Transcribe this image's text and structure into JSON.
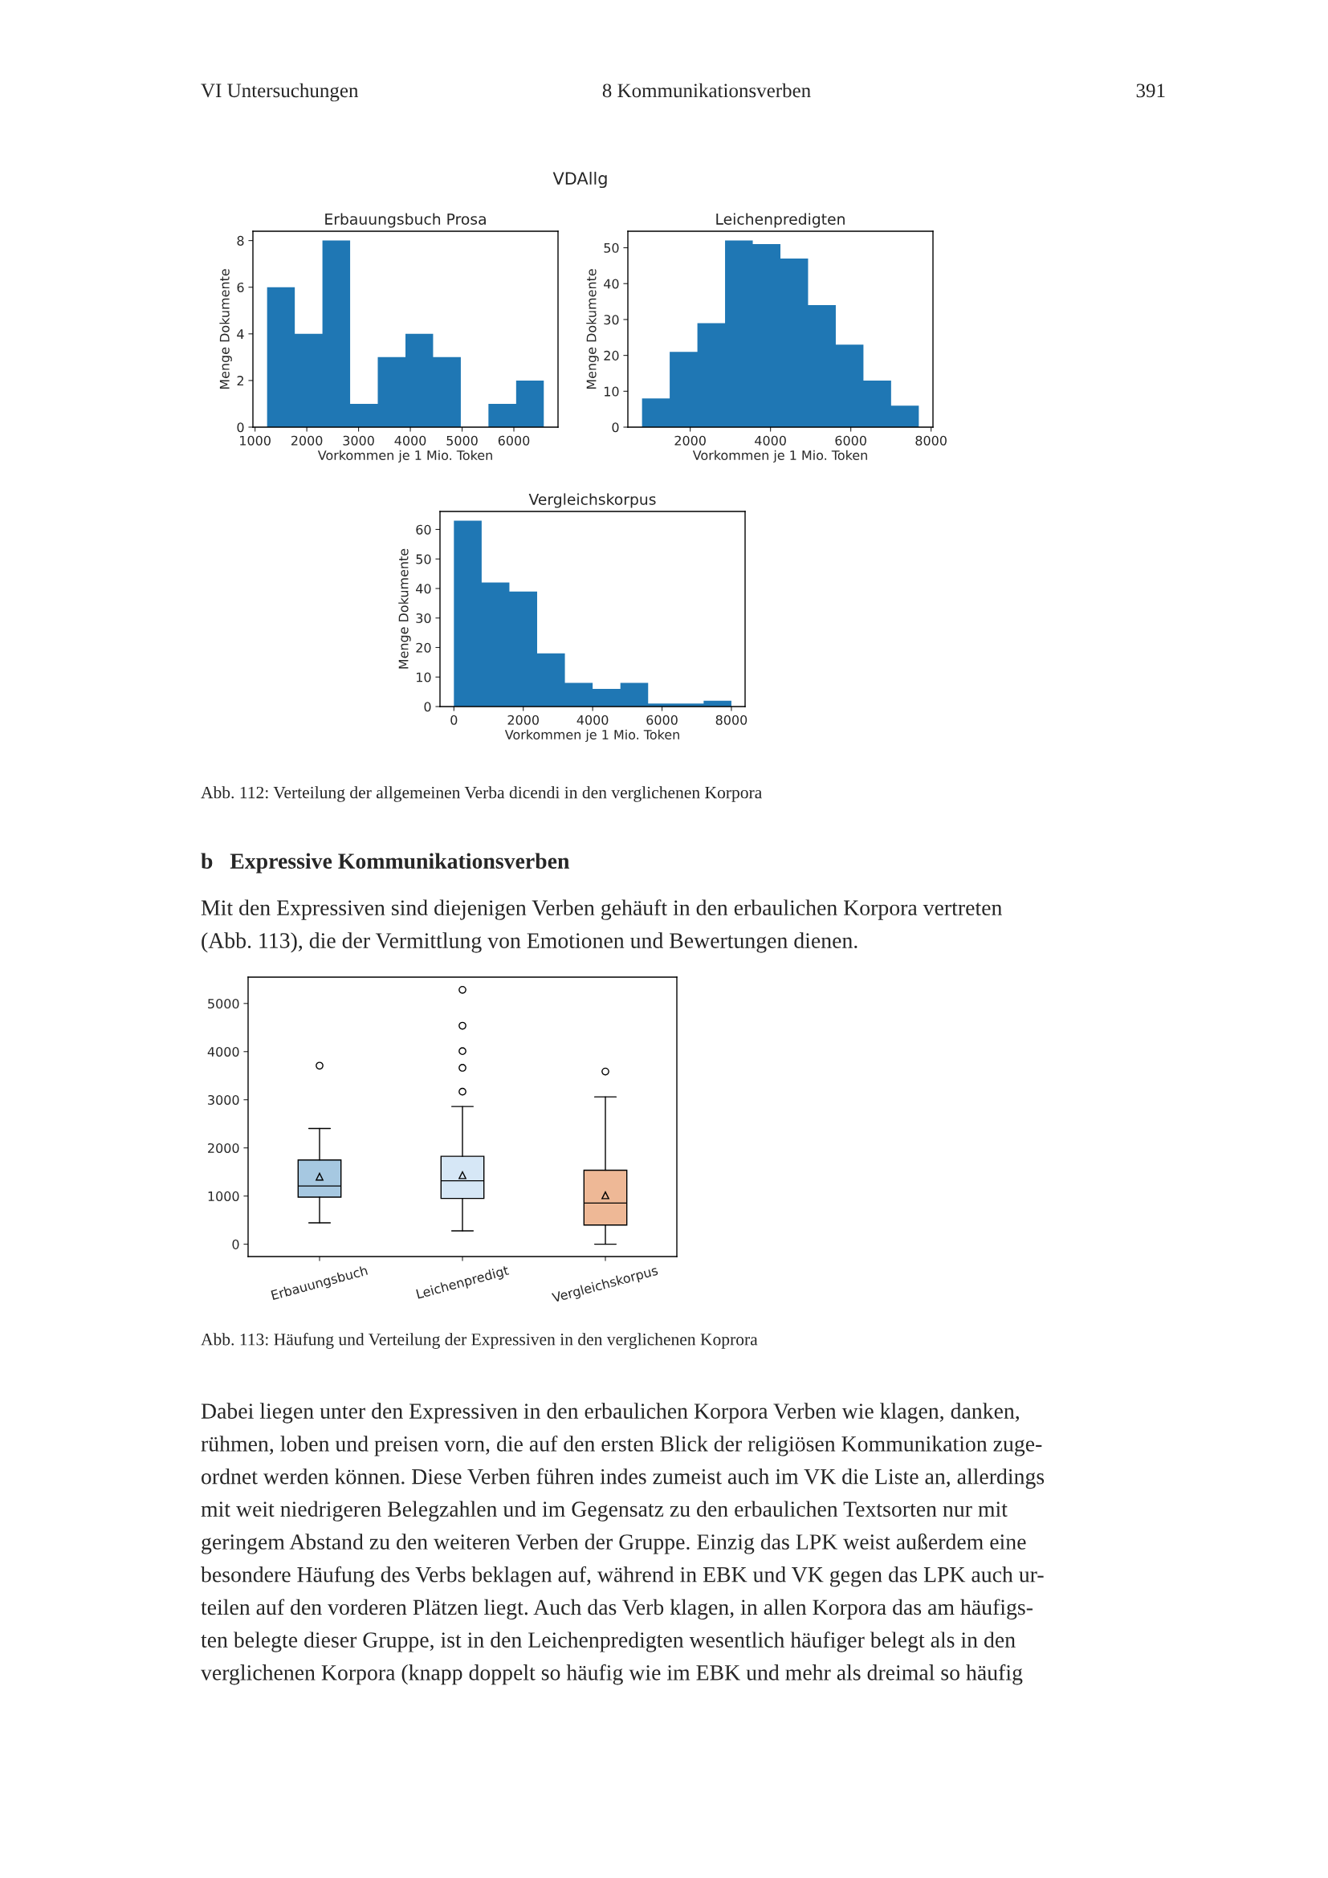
{
  "chart_data": [
    {
      "type": "histogram",
      "title": "Erbauungsbuch Prosa",
      "xlabel": "Vorkommen je 1 Mio. Token",
      "ylabel": "Menge Dokumente",
      "color": "#1f77b4",
      "bins": [
        1233,
        1768,
        2302,
        2837,
        3371,
        3906,
        4440,
        4975,
        5509,
        6044,
        6578
      ],
      "values": [
        6,
        4,
        8,
        1,
        3,
        4,
        3,
        0,
        1,
        2
      ],
      "xlim": [
        959,
        6853
      ],
      "ylim": [
        0,
        8.4
      ],
      "xticks": [
        1000,
        2000,
        3000,
        4000,
        5000,
        6000
      ],
      "yticks": [
        0,
        2,
        4,
        6,
        8
      ],
      "grid": false,
      "annotations": [
        "VI Untersuchungen",
        "8 Kommunikationsverben",
        "391",
        "VDAllg"
      ]
    },
    {
      "type": "histogram",
      "title": "Leichenpredigten",
      "xlabel": "Vorkommen je 1 Mio. Token",
      "ylabel": "Menge Dokumente",
      "color": "#1f77b4",
      "bins": [
        800,
        1489,
        2179,
        2868,
        3558,
        4247,
        4936,
        5626,
        6315,
        7004,
        7694
      ],
      "values": [
        8,
        21,
        29,
        52,
        51,
        47,
        34,
        23,
        13,
        6
      ],
      "xlim": [
        447,
        8047
      ],
      "ylim": [
        0,
        54.6
      ],
      "xticks": [
        2000,
        4000,
        6000,
        8000
      ],
      "yticks": [
        0,
        10,
        20,
        30,
        40,
        50
      ],
      "grid": false
    },
    {
      "type": "histogram",
      "title": "Vergleichskorpus",
      "xlabel": "Vorkommen je 1 Mio. Token",
      "ylabel": "Menge Dokumente",
      "color": "#1f77b4",
      "bins": [
        0,
        800,
        1600,
        2400,
        3200,
        4000,
        4800,
        5600,
        6400,
        7200,
        8000
      ],
      "values": [
        63,
        42,
        39,
        18,
        8,
        6,
        8,
        1,
        1,
        2
      ],
      "xlim": [
        -401,
        8395
      ],
      "ylim": [
        0,
        66.1
      ],
      "xticks": [
        0,
        2000,
        4000,
        6000,
        8000
      ],
      "yticks": [
        0,
        10,
        20,
        30,
        40,
        50,
        60
      ],
      "grid": false,
      "annotations": [
        "Abb. 112: Verteilung der allgemeinen Verba dicendi in den verglichenen Korpora",
        "b   Expressive Kommunikationsverben",
        "Mit den Expressiven sind diejenigen Verben gehäuft in den erbaulichen Korpora vertreten",
        "(Abb. 113), die der Vermittlung von Emotionen und Bewertungen dienen."
      ]
    },
    {
      "type": "box",
      "categories": [
        "Erbauungsbuch",
        "Leichenpredigt",
        "Vergleichskorpus"
      ],
      "colors": [
        "#a6c8e1",
        "#d6e7f6",
        "#eeb896"
      ],
      "boxes": [
        {
          "low": 443,
          "q1": 977,
          "median": 1208,
          "q3": 1748,
          "high": 2404,
          "mean": 1401,
          "outliers": [
            3708
          ]
        },
        {
          "low": 276,
          "q1": 951,
          "median": 1317,
          "q3": 1825,
          "high": 2860,
          "mean": 1433,
          "outliers": [
            3168,
            3663,
            4010,
            4537,
            5283
          ]
        },
        {
          "low": 0,
          "q1": 398,
          "median": 855,
          "q3": 1536,
          "high": 3059,
          "mean": 1015,
          "outliers": [
            3586
          ]
        }
      ],
      "ylim": [
        -257,
        5547
      ],
      "yticks": [
        0,
        1000,
        2000,
        3000,
        4000,
        5000
      ],
      "grid": false,
      "annotations": [
        "Abb. 113: Häufung und Verteilung der Expressiven in den verglichenen Koprora",
        "Dabei liegen unter den Expressiven in den erbaulichen Korpora Verben wie klagen, danken,",
        "rühmen, loben und preisen vorn, die auf den ersten Blick der religiösen Kommunikation zuge-",
        "ordnet werden können. Diese Verben führen indes zumeist auch im VK die Liste an, allerdings",
        "mit weit niedrigeren Belegzahlen und im Gegensatz zu den erbaulichen Textsorten nur mit",
        "geringem Abstand zu den weiteren Verben der Gruppe. Einzig das LPK weist außerdem eine",
        "besondere Häufung des Verbs beklagen auf, während in EBK und VK gegen das LPK auch ur-",
        "teilen auf den vorderen Plätzen liegt. Auch das Verb klagen, in allen Korpora das am häufigs-",
        "ten belegte dieser Gruppe, ist in den Leichenpredigten wesentlich häufiger belegt als in den",
        "verglichenen Korpora (knapp doppelt so häufig wie im EBK und mehr als dreimal so häufig"
      ]
    }
  ]
}
